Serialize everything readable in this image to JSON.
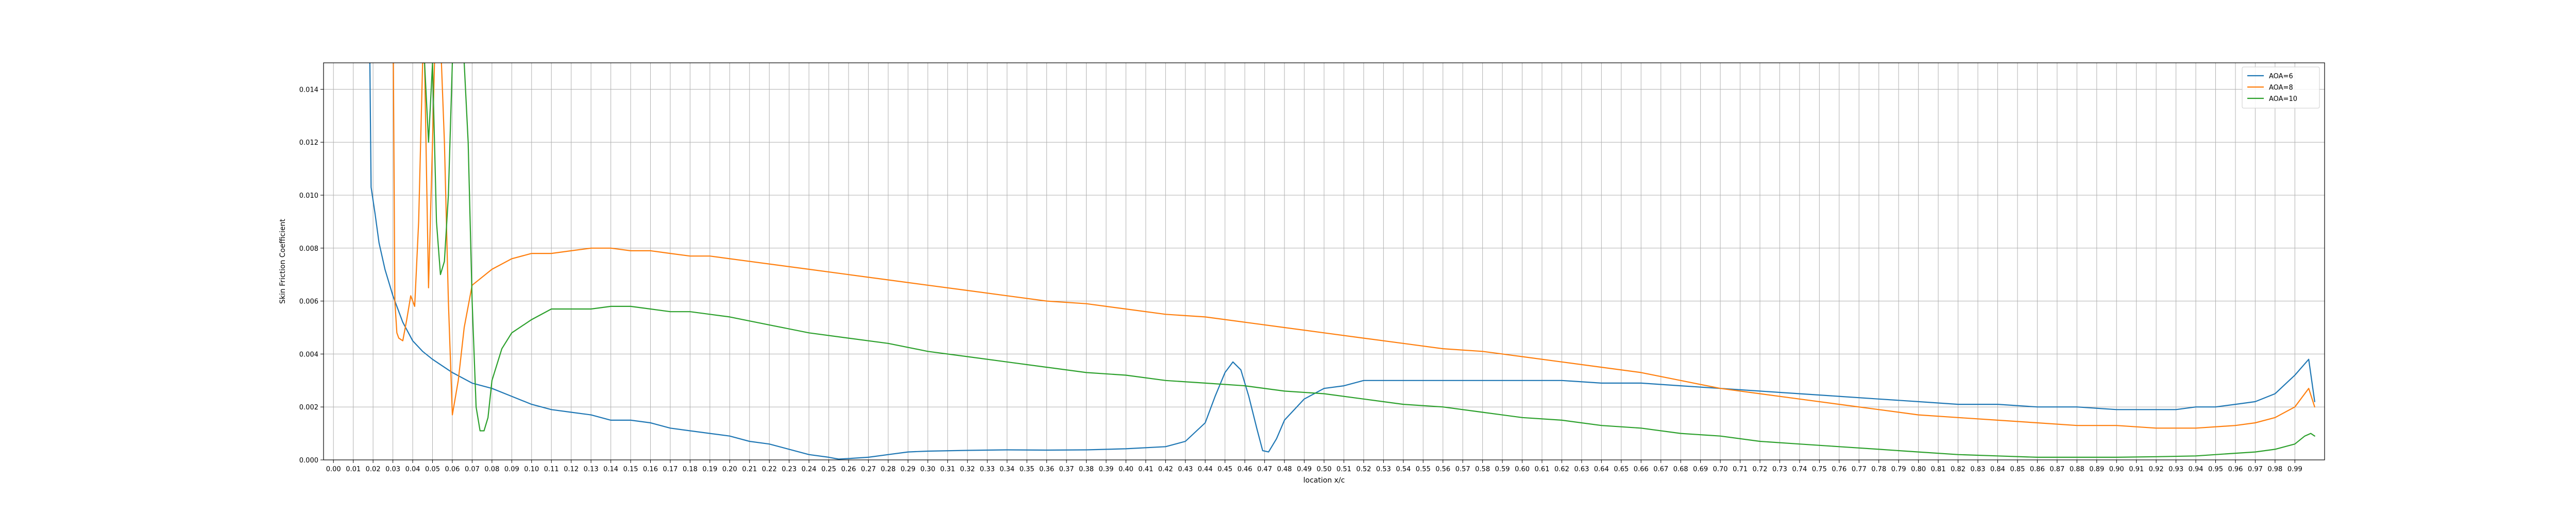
{
  "chart_data": {
    "type": "line",
    "title": "",
    "xlabel": "location x/c",
    "ylabel": "Skin Friction Coefficient",
    "xlim": [
      -0.005,
      1.005
    ],
    "ylim": [
      0,
      0.015
    ],
    "grid": true,
    "legend_position": "top-right",
    "x_ticks": [
      "0.00",
      "0.01",
      "0.02",
      "0.03",
      "0.04",
      "0.05",
      "0.06",
      "0.07",
      "0.08",
      "0.09",
      "0.10",
      "0.11",
      "0.12",
      "0.13",
      "0.14",
      "0.15",
      "0.16",
      "0.17",
      "0.18",
      "0.19",
      "0.20",
      "0.21",
      "0.22",
      "0.23",
      "0.24",
      "0.25",
      "0.26",
      "0.27",
      "0.28",
      "0.29",
      "0.30",
      "0.31",
      "0.32",
      "0.33",
      "0.34",
      "0.35",
      "0.36",
      "0.37",
      "0.38",
      "0.39",
      "0.40",
      "0.41",
      "0.42",
      "0.43",
      "0.44",
      "0.45",
      "0.46",
      "0.47",
      "0.48",
      "0.49",
      "0.50",
      "0.51",
      "0.52",
      "0.53",
      "0.54",
      "0.55",
      "0.56",
      "0.57",
      "0.58",
      "0.59",
      "0.60",
      "0.61",
      "0.62",
      "0.63",
      "0.64",
      "0.65",
      "0.66",
      "0.67",
      "0.68",
      "0.69",
      "0.70",
      "0.71",
      "0.72",
      "0.73",
      "0.74",
      "0.75",
      "0.76",
      "0.77",
      "0.78",
      "0.79",
      "0.80",
      "0.81",
      "0.82",
      "0.83",
      "0.84",
      "0.85",
      "0.86",
      "0.87",
      "0.88",
      "0.89",
      "0.90",
      "0.91",
      "0.92",
      "0.93",
      "0.94",
      "0.95",
      "0.96",
      "0.97",
      "0.98",
      "0.99"
    ],
    "y_ticks": [
      "0.000",
      "0.002",
      "0.004",
      "0.006",
      "0.008",
      "0.010",
      "0.012",
      "0.014"
    ],
    "series": [
      {
        "name": "AOA=6",
        "color": "#1f77b4",
        "points": [
          [
            0.018,
            0.018
          ],
          [
            0.019,
            0.0103
          ],
          [
            0.021,
            0.0093
          ],
          [
            0.023,
            0.0082
          ],
          [
            0.026,
            0.0072
          ],
          [
            0.03,
            0.0062
          ],
          [
            0.035,
            0.0052
          ],
          [
            0.04,
            0.0045
          ],
          [
            0.045,
            0.0041
          ],
          [
            0.05,
            0.0038
          ],
          [
            0.06,
            0.0033
          ],
          [
            0.07,
            0.0029
          ],
          [
            0.08,
            0.0027
          ],
          [
            0.09,
            0.0024
          ],
          [
            0.1,
            0.0021
          ],
          [
            0.11,
            0.0019
          ],
          [
            0.12,
            0.0018
          ],
          [
            0.13,
            0.0017
          ],
          [
            0.14,
            0.0015
          ],
          [
            0.15,
            0.0015
          ],
          [
            0.16,
            0.0014
          ],
          [
            0.17,
            0.0012
          ],
          [
            0.18,
            0.0011
          ],
          [
            0.19,
            0.001
          ],
          [
            0.2,
            0.0009
          ],
          [
            0.21,
            0.0007
          ],
          [
            0.22,
            0.0006
          ],
          [
            0.23,
            0.0004
          ],
          [
            0.24,
            0.0002
          ],
          [
            0.25,
            0.0001
          ],
          [
            0.255,
            3e-05
          ],
          [
            0.26,
            5e-05
          ],
          [
            0.27,
            0.0001
          ],
          [
            0.28,
            0.0002
          ],
          [
            0.29,
            0.0003
          ],
          [
            0.3,
            0.00033
          ],
          [
            0.32,
            0.00036
          ],
          [
            0.34,
            0.00038
          ],
          [
            0.36,
            0.00037
          ],
          [
            0.38,
            0.00038
          ],
          [
            0.4,
            0.00042
          ],
          [
            0.42,
            0.0005
          ],
          [
            0.43,
            0.0007
          ],
          [
            0.44,
            0.0014
          ],
          [
            0.445,
            0.0024
          ],
          [
            0.45,
            0.0033
          ],
          [
            0.454,
            0.0037
          ],
          [
            0.458,
            0.0034
          ],
          [
            0.462,
            0.0024
          ],
          [
            0.466,
            0.0012
          ],
          [
            0.469,
            0.00035
          ],
          [
            0.472,
            0.0003
          ],
          [
            0.476,
            0.0008
          ],
          [
            0.48,
            0.0015
          ],
          [
            0.49,
            0.0023
          ],
          [
            0.5,
            0.0027
          ],
          [
            0.51,
            0.0028
          ],
          [
            0.52,
            0.003
          ],
          [
            0.53,
            0.003
          ],
          [
            0.54,
            0.003
          ],
          [
            0.56,
            0.003
          ],
          [
            0.58,
            0.003
          ],
          [
            0.6,
            0.003
          ],
          [
            0.62,
            0.003
          ],
          [
            0.64,
            0.0029
          ],
          [
            0.66,
            0.0029
          ],
          [
            0.68,
            0.0028
          ],
          [
            0.7,
            0.0027
          ],
          [
            0.72,
            0.0026
          ],
          [
            0.74,
            0.0025
          ],
          [
            0.76,
            0.0024
          ],
          [
            0.78,
            0.0023
          ],
          [
            0.8,
            0.0022
          ],
          [
            0.82,
            0.0021
          ],
          [
            0.84,
            0.0021
          ],
          [
            0.86,
            0.002
          ],
          [
            0.88,
            0.002
          ],
          [
            0.9,
            0.0019
          ],
          [
            0.91,
            0.0019
          ],
          [
            0.92,
            0.0019
          ],
          [
            0.93,
            0.0019
          ],
          [
            0.94,
            0.002
          ],
          [
            0.95,
            0.002
          ],
          [
            0.96,
            0.0021
          ],
          [
            0.97,
            0.0022
          ],
          [
            0.98,
            0.0025
          ],
          [
            0.99,
            0.0032
          ],
          [
            0.997,
            0.0038
          ],
          [
            1.0,
            0.0022
          ]
        ]
      },
      {
        "name": "AOA=8",
        "color": "#ff7f0e",
        "points": [
          [
            0.03,
            0.018
          ],
          [
            0.031,
            0.006
          ],
          [
            0.032,
            0.0048
          ],
          [
            0.033,
            0.0046
          ],
          [
            0.035,
            0.0045
          ],
          [
            0.037,
            0.0053
          ],
          [
            0.039,
            0.0062
          ],
          [
            0.041,
            0.0058
          ],
          [
            0.043,
            0.009
          ],
          [
            0.045,
            0.015
          ],
          [
            0.046,
            0.015
          ],
          [
            0.048,
            0.0065
          ],
          [
            0.05,
            0.012
          ],
          [
            0.052,
            0.018
          ],
          [
            0.053,
            0.018
          ],
          [
            0.056,
            0.012
          ],
          [
            0.058,
            0.006
          ],
          [
            0.06,
            0.0017
          ],
          [
            0.063,
            0.003
          ],
          [
            0.066,
            0.005
          ],
          [
            0.07,
            0.0066
          ],
          [
            0.08,
            0.0072
          ],
          [
            0.09,
            0.0076
          ],
          [
            0.1,
            0.0078
          ],
          [
            0.11,
            0.0078
          ],
          [
            0.12,
            0.0079
          ],
          [
            0.13,
            0.008
          ],
          [
            0.14,
            0.008
          ],
          [
            0.15,
            0.0079
          ],
          [
            0.16,
            0.0079
          ],
          [
            0.17,
            0.0078
          ],
          [
            0.18,
            0.0077
          ],
          [
            0.19,
            0.0077
          ],
          [
            0.2,
            0.0076
          ],
          [
            0.22,
            0.0074
          ],
          [
            0.24,
            0.0072
          ],
          [
            0.26,
            0.007
          ],
          [
            0.28,
            0.0068
          ],
          [
            0.3,
            0.0066
          ],
          [
            0.32,
            0.0064
          ],
          [
            0.34,
            0.0062
          ],
          [
            0.36,
            0.006
          ],
          [
            0.38,
            0.0059
          ],
          [
            0.4,
            0.0057
          ],
          [
            0.42,
            0.0055
          ],
          [
            0.44,
            0.0054
          ],
          [
            0.46,
            0.0052
          ],
          [
            0.48,
            0.005
          ],
          [
            0.5,
            0.0048
          ],
          [
            0.52,
            0.0046
          ],
          [
            0.54,
            0.0044
          ],
          [
            0.56,
            0.0042
          ],
          [
            0.58,
            0.0041
          ],
          [
            0.6,
            0.0039
          ],
          [
            0.62,
            0.0037
          ],
          [
            0.64,
            0.0035
          ],
          [
            0.66,
            0.0033
          ],
          [
            0.68,
            0.003
          ],
          [
            0.7,
            0.0027
          ],
          [
            0.72,
            0.0025
          ],
          [
            0.74,
            0.0023
          ],
          [
            0.76,
            0.0021
          ],
          [
            0.78,
            0.0019
          ],
          [
            0.8,
            0.0017
          ],
          [
            0.82,
            0.0016
          ],
          [
            0.84,
            0.0015
          ],
          [
            0.86,
            0.0014
          ],
          [
            0.88,
            0.0013
          ],
          [
            0.9,
            0.0013
          ],
          [
            0.92,
            0.0012
          ],
          [
            0.94,
            0.0012
          ],
          [
            0.96,
            0.0013
          ],
          [
            0.97,
            0.0014
          ],
          [
            0.98,
            0.0016
          ],
          [
            0.99,
            0.002
          ],
          [
            0.997,
            0.0027
          ],
          [
            1.0,
            0.002
          ]
        ]
      },
      {
        "name": "AOA=10",
        "color": "#2ca02c",
        "points": [
          [
            0.046,
            0.015
          ],
          [
            0.048,
            0.012
          ],
          [
            0.05,
            0.015
          ],
          [
            0.052,
            0.009
          ],
          [
            0.054,
            0.007
          ],
          [
            0.056,
            0.0075
          ],
          [
            0.058,
            0.01
          ],
          [
            0.06,
            0.015
          ],
          [
            0.061,
            0.018
          ],
          [
            0.064,
            0.018
          ],
          [
            0.066,
            0.015
          ],
          [
            0.068,
            0.012
          ],
          [
            0.07,
            0.006
          ],
          [
            0.072,
            0.002
          ],
          [
            0.074,
            0.0011
          ],
          [
            0.076,
            0.0011
          ],
          [
            0.078,
            0.0016
          ],
          [
            0.08,
            0.003
          ],
          [
            0.085,
            0.0042
          ],
          [
            0.09,
            0.0048
          ],
          [
            0.1,
            0.0053
          ],
          [
            0.11,
            0.0057
          ],
          [
            0.12,
            0.0057
          ],
          [
            0.13,
            0.0057
          ],
          [
            0.14,
            0.0058
          ],
          [
            0.15,
            0.0058
          ],
          [
            0.16,
            0.0057
          ],
          [
            0.17,
            0.0056
          ],
          [
            0.18,
            0.0056
          ],
          [
            0.19,
            0.0055
          ],
          [
            0.2,
            0.0054
          ],
          [
            0.22,
            0.0051
          ],
          [
            0.24,
            0.0048
          ],
          [
            0.26,
            0.0046
          ],
          [
            0.28,
            0.0044
          ],
          [
            0.3,
            0.0041
          ],
          [
            0.32,
            0.0039
          ],
          [
            0.34,
            0.0037
          ],
          [
            0.36,
            0.0035
          ],
          [
            0.38,
            0.0033
          ],
          [
            0.4,
            0.0032
          ],
          [
            0.42,
            0.003
          ],
          [
            0.44,
            0.0029
          ],
          [
            0.46,
            0.0028
          ],
          [
            0.48,
            0.0026
          ],
          [
            0.5,
            0.0025
          ],
          [
            0.52,
            0.0023
          ],
          [
            0.54,
            0.0021
          ],
          [
            0.56,
            0.002
          ],
          [
            0.58,
            0.0018
          ],
          [
            0.6,
            0.0016
          ],
          [
            0.62,
            0.0015
          ],
          [
            0.64,
            0.0013
          ],
          [
            0.66,
            0.0012
          ],
          [
            0.68,
            0.001
          ],
          [
            0.7,
            0.0009
          ],
          [
            0.72,
            0.0007
          ],
          [
            0.74,
            0.0006
          ],
          [
            0.76,
            0.0005
          ],
          [
            0.78,
            0.0004
          ],
          [
            0.8,
            0.0003
          ],
          [
            0.82,
            0.0002
          ],
          [
            0.84,
            0.00015
          ],
          [
            0.86,
            0.0001
          ],
          [
            0.88,
            0.0001
          ],
          [
            0.9,
            0.0001
          ],
          [
            0.92,
            0.00012
          ],
          [
            0.94,
            0.00015
          ],
          [
            0.96,
            0.00025
          ],
          [
            0.97,
            0.0003
          ],
          [
            0.98,
            0.0004
          ],
          [
            0.99,
            0.0006
          ],
          [
            0.995,
            0.0009
          ],
          [
            0.998,
            0.001
          ],
          [
            1.0,
            0.0009
          ]
        ]
      }
    ]
  }
}
